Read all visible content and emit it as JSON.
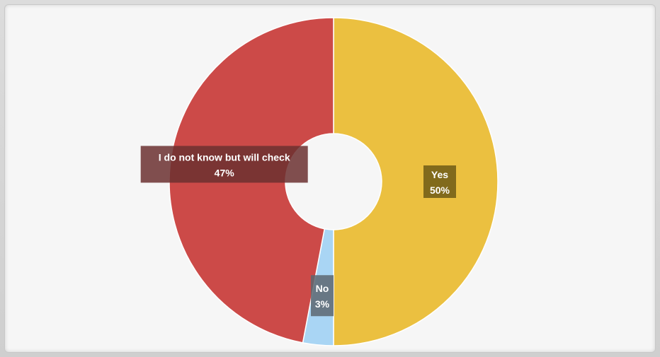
{
  "chart_data": {
    "type": "pie",
    "variant": "donut",
    "title": "",
    "slices": [
      {
        "label": "Yes",
        "value": 50,
        "value_label": "50%",
        "color": "#ebc040",
        "label_bg": "#6e5a16"
      },
      {
        "label": "No",
        "value": 3,
        "value_label": "3%",
        "color": "#a9d5f4",
        "label_bg": "#5d6670"
      },
      {
        "label": "I do not know but will check",
        "value": 47,
        "value_label": "47%",
        "color": "#cc4a48",
        "label_bg": "#6b3030"
      }
    ],
    "legend": "none",
    "labels_on_slices": true
  }
}
